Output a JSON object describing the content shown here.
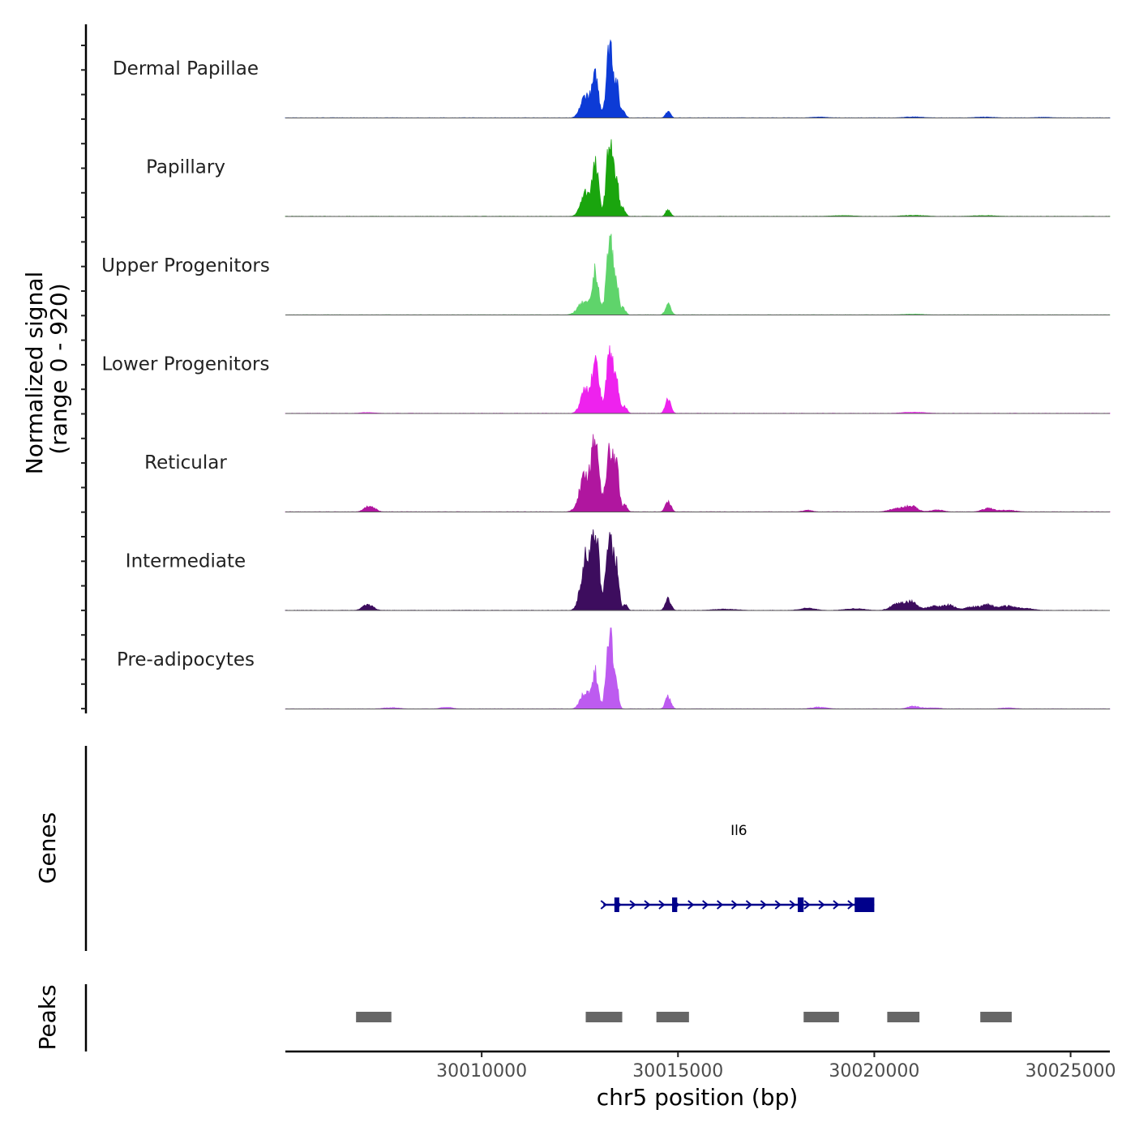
{
  "chart_data": {
    "type": "area",
    "title": "",
    "xlabel": "chr5 position (bp)",
    "ylabel": "Normalized signal",
    "ylabel_range": "(range 0 - 920)",
    "xlim": [
      30005000,
      30026000
    ],
    "ylim": [
      0,
      920
    ],
    "x_ticks": [
      30010000,
      30015000,
      30020000,
      30025000
    ],
    "x_tick_labels": [
      "30010000",
      "30015000",
      "30020000",
      "30025000"
    ],
    "series": [
      {
        "name": "Dermal Papillae",
        "color": "#0d3bd6",
        "peaks": [
          [
            30012650,
            260,
            120
          ],
          [
            30012900,
            450,
            80
          ],
          [
            30013270,
            880,
            85
          ],
          [
            30013450,
            300,
            50
          ],
          [
            30013600,
            90,
            60
          ],
          [
            30014750,
            80,
            60
          ],
          [
            30018600,
            10,
            200
          ],
          [
            30021000,
            12,
            250
          ],
          [
            30022800,
            10,
            250
          ],
          [
            30024300,
            8,
            200
          ]
        ]
      },
      {
        "name": "Papillary",
        "color": "#1aa50e",
        "peaks": [
          [
            30012650,
            280,
            120
          ],
          [
            30012900,
            550,
            80
          ],
          [
            30013270,
            900,
            85
          ],
          [
            30013450,
            320,
            50
          ],
          [
            30013600,
            90,
            60
          ],
          [
            30014750,
            80,
            60
          ],
          [
            30019200,
            10,
            300
          ],
          [
            30021000,
            12,
            300
          ],
          [
            30022800,
            10,
            300
          ]
        ]
      },
      {
        "name": "Upper Progenitors",
        "color": "#5fd46b",
        "peaks": [
          [
            30012600,
            140,
            150
          ],
          [
            30012900,
            480,
            80
          ],
          [
            30013270,
            880,
            85
          ],
          [
            30013450,
            280,
            50
          ],
          [
            30013600,
            80,
            60
          ],
          [
            30014750,
            120,
            70
          ],
          [
            30021000,
            10,
            250
          ]
        ]
      },
      {
        "name": "Lower Progenitors",
        "color": "#ee22ee",
        "peaks": [
          [
            30012650,
            280,
            120
          ],
          [
            30012900,
            560,
            90
          ],
          [
            30013270,
            690,
            90
          ],
          [
            30013450,
            260,
            60
          ],
          [
            30013650,
            80,
            60
          ],
          [
            30014750,
            160,
            70
          ],
          [
            30007100,
            10,
            200
          ],
          [
            30021000,
            14,
            300
          ]
        ]
      },
      {
        "name": "Reticular",
        "color": "#b0169f",
        "peaks": [
          [
            30007150,
            70,
            130
          ],
          [
            30012650,
            420,
            150
          ],
          [
            30012900,
            740,
            90
          ],
          [
            30013270,
            700,
            100
          ],
          [
            30013450,
            380,
            60
          ],
          [
            30013650,
            80,
            60
          ],
          [
            30014750,
            120,
            70
          ],
          [
            30018300,
            20,
            120
          ],
          [
            30020600,
            40,
            200
          ],
          [
            30020950,
            60,
            150
          ],
          [
            30021600,
            25,
            150
          ],
          [
            30022900,
            40,
            150
          ],
          [
            30023400,
            20,
            200
          ]
        ]
      },
      {
        "name": "Intermediate",
        "color": "#3d0d5e",
        "peaks": [
          [
            30007100,
            70,
            130
          ],
          [
            30012650,
            600,
            120
          ],
          [
            30012900,
            850,
            90
          ],
          [
            30013270,
            840,
            100
          ],
          [
            30013450,
            380,
            50
          ],
          [
            30013650,
            70,
            60
          ],
          [
            30014750,
            130,
            70
          ],
          [
            30016200,
            15,
            300
          ],
          [
            30018300,
            25,
            200
          ],
          [
            30019500,
            20,
            250
          ],
          [
            30020600,
            70,
            180
          ],
          [
            30020950,
            90,
            150
          ],
          [
            30021500,
            50,
            150
          ],
          [
            30021900,
            60,
            150
          ],
          [
            30022500,
            40,
            180
          ],
          [
            30022900,
            60,
            150
          ],
          [
            30023400,
            50,
            200
          ],
          [
            30023900,
            20,
            200
          ]
        ]
      },
      {
        "name": "Pre-adipocytes",
        "color": "#bd5bf0",
        "peaks": [
          [
            30012650,
            200,
            120
          ],
          [
            30012900,
            400,
            70
          ],
          [
            30013270,
            920,
            85
          ],
          [
            30013450,
            170,
            50
          ],
          [
            30014750,
            140,
            70
          ],
          [
            30007700,
            15,
            200
          ],
          [
            30009100,
            20,
            150
          ],
          [
            30018600,
            20,
            200
          ],
          [
            30021000,
            30,
            150
          ],
          [
            30021500,
            12,
            200
          ],
          [
            30023400,
            12,
            200
          ]
        ]
      }
    ],
    "genes": [
      {
        "name": "Il6",
        "start": 30013100,
        "end": 30020000,
        "strand": "+",
        "exons": [
          [
            30013380,
            30013500
          ],
          [
            30014850,
            30014980
          ],
          [
            30018050,
            30018200
          ],
          [
            30019500,
            30020000
          ]
        ]
      }
    ],
    "peaks_track": {
      "label": "Peaks",
      "regions": [
        [
          30006800,
          30007700
        ],
        [
          30012650,
          30013580
        ],
        [
          30014450,
          30015280
        ],
        [
          30018200,
          30019100
        ],
        [
          30020330,
          30021150
        ],
        [
          30022700,
          30023500
        ]
      ]
    },
    "track_labels": {
      "genes": "Genes",
      "peaks": "Peaks"
    }
  }
}
